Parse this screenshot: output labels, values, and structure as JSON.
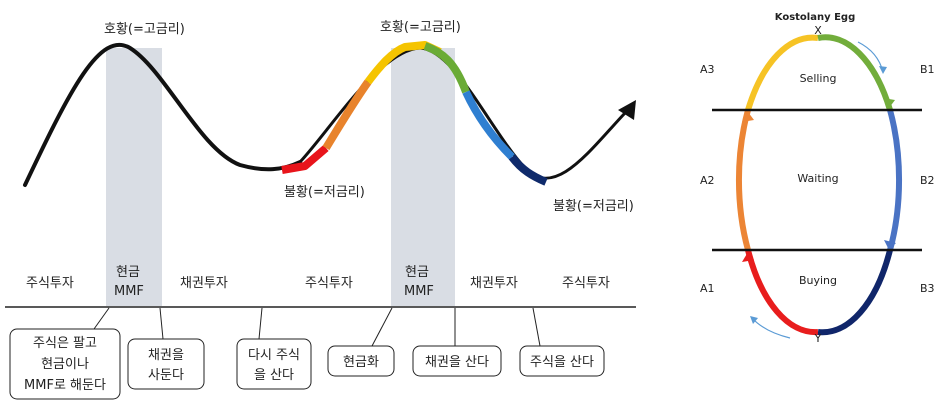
{
  "left": {
    "peak_labels": [
      "호황(=고금리)",
      "호황(=고금리)"
    ],
    "trough_labels": [
      "불황(=저금리)",
      "불황(=저금리)"
    ],
    "phase_labels": [
      "주식투자",
      "현금",
      "MMF",
      "채권투자",
      "주식투자",
      "현금",
      "MMF",
      "채권투자",
      "주식투자"
    ],
    "callouts": [
      [
        "주식은 팔고",
        "현금이나",
        "MMF로 해둔다"
      ],
      [
        "채권을",
        "사둔다"
      ],
      [
        "다시 주식",
        "을 산다"
      ],
      [
        "현금화"
      ],
      [
        "채권을 산다"
      ],
      [
        "주식을 산다"
      ]
    ],
    "segment_colors": {
      "red": "#e8141b",
      "orange": "#e8832c",
      "yellow": "#f5c400",
      "green": "#6aab36",
      "blue": "#2f7fd1",
      "navy": "#0f2a6b"
    }
  },
  "right": {
    "title": "Kostolany Egg",
    "top_point": "X",
    "bottom_point": "Y",
    "zones": [
      "Selling",
      "Waiting",
      "Buying"
    ],
    "phases_left": [
      "A3",
      "A2",
      "A1"
    ],
    "phases_right": [
      "B1",
      "B2",
      "B3"
    ],
    "colors": {
      "yellow": "#f6c325",
      "green": "#72ad3b",
      "orange": "#ec8535",
      "blue": "#4a73c4",
      "red": "#e81d1d",
      "navy": "#10266a",
      "arrow": "#5b9bd5"
    }
  }
}
